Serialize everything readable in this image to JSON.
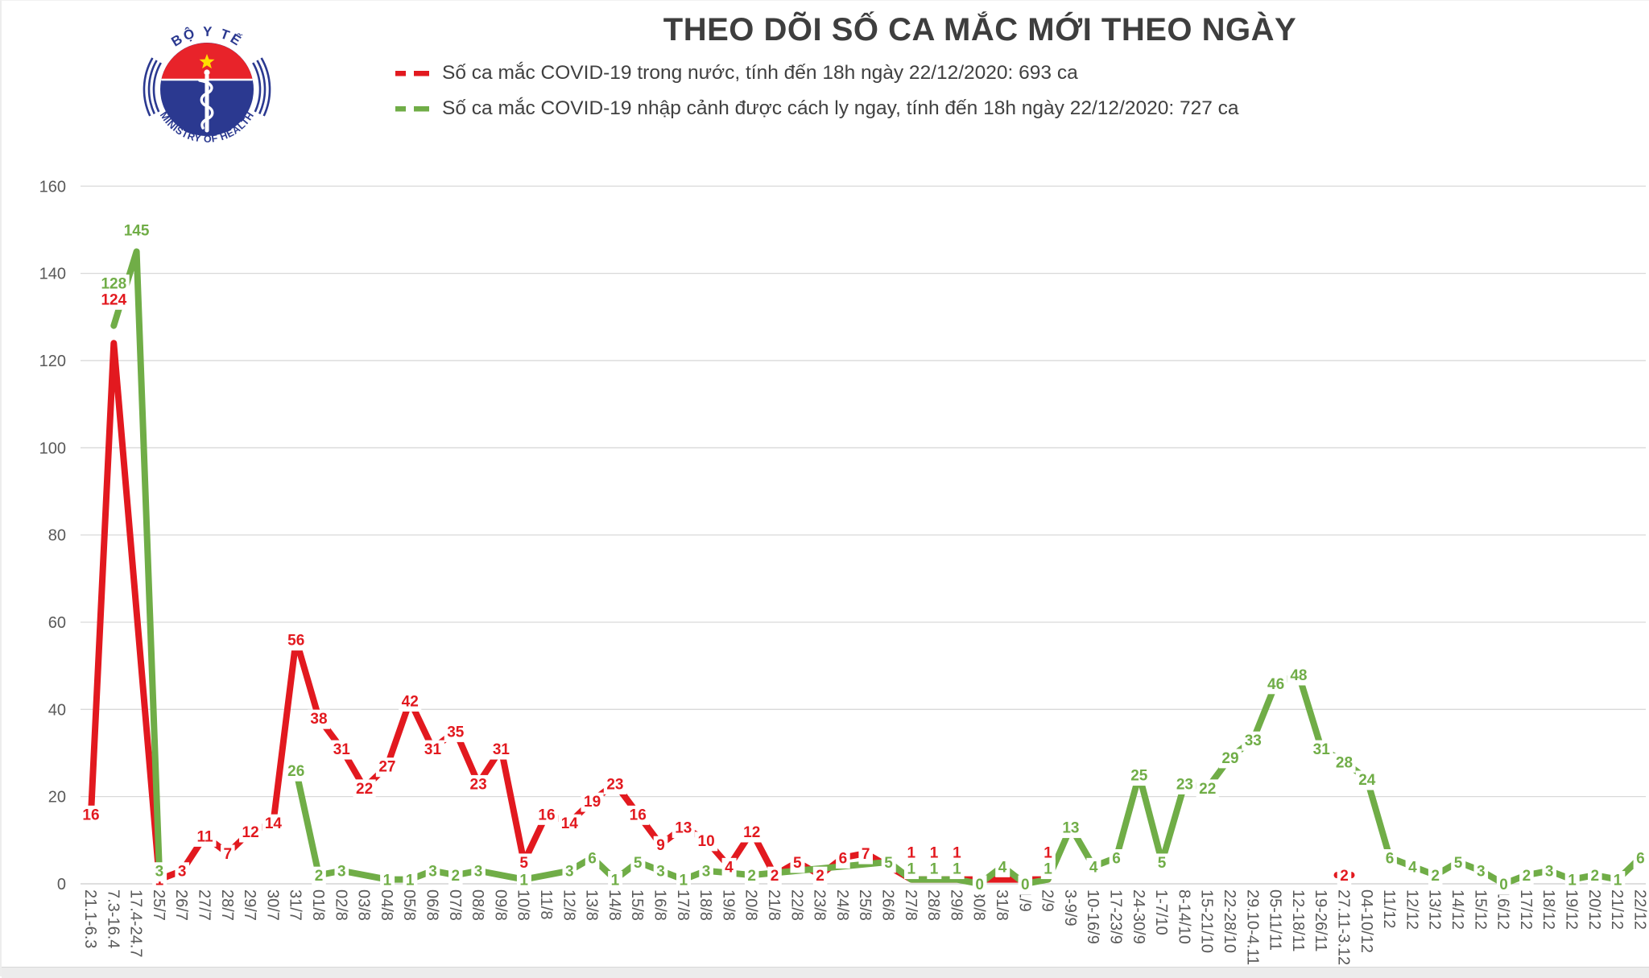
{
  "title": "THEO DÕI SỐ CA MẮC MỚI THEO NGÀY",
  "legend": [
    {
      "label": "Số ca mắc COVID-19 trong nước, tính đến 18h ngày 22/12/2020:  693 ca",
      "color": "#e2191f"
    },
    {
      "label": "Số ca mắc COVID-19 nhập cảnh được cách ly ngay, tính đến 18h ngày 22/12/2020:  727 ca",
      "color": "#70ad47"
    }
  ],
  "logo": {
    "top_text": "BỘ Y TẾ",
    "bottom_text": "MINISTRY OF HEALTH",
    "navy": "#2b3990",
    "red": "#e8232a",
    "star": "#ffde00"
  },
  "chart_data": {
    "type": "line",
    "title": "THEO DÕI SỐ CA MẮC MỚI THEO NGÀY",
    "xlabel": "",
    "ylabel": "",
    "ylim": [
      0,
      160
    ],
    "ytick_step": 20,
    "grid": true,
    "legend_position": "top",
    "grid_color": "#d9d9d9",
    "axis_text_color": "#595959",
    "categories": [
      "21.1-6.3",
      "7.3-16.4",
      "17.4-24.7",
      "25/7",
      "26/7",
      "27/7",
      "28/7",
      "29/7",
      "30/7",
      "31/7",
      "01/8",
      "02/8",
      "03/8",
      "04/8",
      "05/8",
      "06/8",
      "07/8",
      "08/8",
      "09/8",
      "10/8",
      "11/8",
      "12/8",
      "13/8",
      "14/8",
      "15/8",
      "16/8",
      "17/8",
      "18/8",
      "19/8",
      "20/8",
      "21/8",
      "22/8",
      "23/8",
      "24/8",
      "25/8",
      "26/8",
      "27/8",
      "28/8",
      "29/8",
      "30/8",
      "31/8",
      "1/9",
      "2/9",
      "3-9/9",
      "10-16/9",
      "17-23/9",
      "24-30/9",
      "1-7/10",
      "8-14/10",
      "15-21/10",
      "22-28/10",
      "29.10-4.11",
      "05-11/11",
      "12-18/11",
      "19-26/11",
      "27.11-3.12",
      "04-10/12",
      "11/12",
      "12/12",
      "13/12",
      "14/12",
      "15/12",
      "16/12",
      "17/12",
      "18/12",
      "19/12",
      "20/12",
      "21/12",
      "22/12"
    ],
    "series": [
      {
        "name": "Số ca mắc COVID-19 trong nước",
        "color": "#e2191f",
        "values": [
          16,
          124,
          null,
          1,
          3,
          11,
          7,
          12,
          14,
          56,
          38,
          31,
          22,
          27,
          42,
          31,
          35,
          23,
          31,
          5,
          16,
          14,
          19,
          23,
          16,
          9,
          13,
          10,
          4,
          12,
          2,
          5,
          2,
          6,
          7,
          null,
          1,
          1,
          1,
          null,
          null,
          null,
          1,
          null,
          null,
          null,
          null,
          null,
          null,
          null,
          null,
          null,
          null,
          null,
          null,
          2,
          null,
          null,
          null,
          null,
          null,
          null,
          null,
          null,
          null,
          null,
          null,
          null,
          null
        ],
        "segments": [
          [
            0,
            42
          ],
          [
            55,
            55
          ]
        ],
        "label_dy": {
          "1": -48,
          "36": -27,
          "37": -27,
          "38": -27,
          "42": -27
        }
      },
      {
        "name": "Số ca mắc COVID-19 nhập cảnh được cách ly ngay",
        "color": "#70ad47",
        "values": [
          null,
          128,
          145,
          3,
          null,
          null,
          null,
          null,
          null,
          26,
          2,
          3,
          null,
          1,
          1,
          3,
          2,
          3,
          null,
          1,
          null,
          3,
          6,
          1,
          5,
          3,
          1,
          3,
          null,
          2,
          null,
          null,
          null,
          null,
          null,
          5,
          1,
          1,
          1,
          0,
          4,
          0,
          1,
          13,
          4,
          6,
          25,
          5,
          23,
          22,
          29,
          33,
          46,
          48,
          31,
          28,
          24,
          6,
          4,
          2,
          5,
          3,
          0,
          2,
          3,
          1,
          2,
          1,
          6
        ],
        "segments": [
          [
            1,
            3
          ],
          [
            9,
            68
          ]
        ],
        "label_dy": {
          "1": -46,
          "2": -20,
          "36": -7,
          "37": -7,
          "38": -7,
          "42": -7
        }
      }
    ]
  }
}
